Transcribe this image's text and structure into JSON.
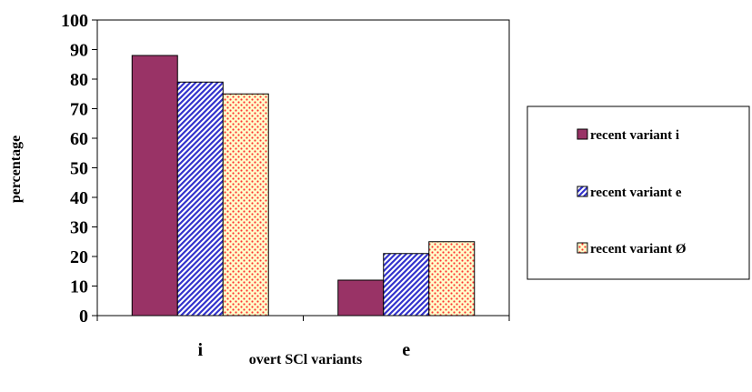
{
  "chart_data": {
    "type": "bar",
    "title": "",
    "xlabel": "overt SCl variants",
    "ylabel": "percentage",
    "categories": [
      "i",
      "e"
    ],
    "series": [
      {
        "name": "recent variant i",
        "values": [
          88,
          12
        ],
        "pattern": "solid",
        "color": "#993366"
      },
      {
        "name": "recent variant e",
        "values": [
          79,
          21
        ],
        "pattern": "diagonal-stripes",
        "color": "#3333cc"
      },
      {
        "name": "recent variant Ø",
        "values": [
          75,
          25
        ],
        "pattern": "dots",
        "color": "#ff3333"
      }
    ],
    "ylim": [
      0,
      100
    ],
    "yticks": [
      "0",
      "10",
      "20",
      "30",
      "40",
      "50",
      "60",
      "70",
      "80",
      "90",
      "100"
    ],
    "grid": false,
    "legend_position": "right"
  }
}
